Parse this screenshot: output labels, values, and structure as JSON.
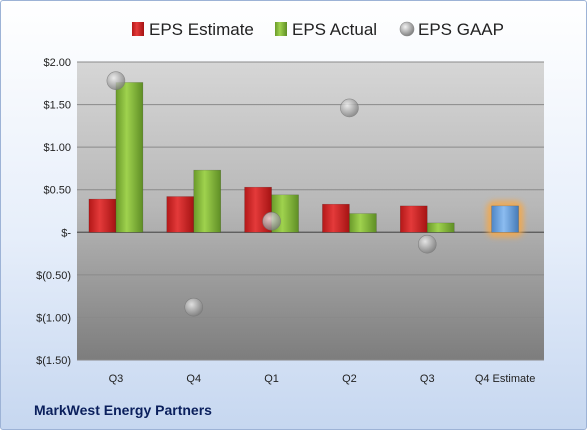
{
  "company": "MarkWest Energy Partners",
  "colors": {
    "estimate": "#d92a2a",
    "actual": "#8cc63e",
    "gaap": "#a8a8a8",
    "forecast": "#6fa8e8",
    "forecast_glow": "#f5a84a"
  },
  "chart_data": {
    "type": "bar",
    "categories": [
      "Q3",
      "Q4",
      "Q1",
      "Q2",
      "Q3",
      "Q4 Estimate"
    ],
    "series": [
      {
        "name": "EPS Estimate",
        "values": [
          0.39,
          0.42,
          0.53,
          0.33,
          0.31,
          0.31
        ]
      },
      {
        "name": "EPS Actual",
        "values": [
          1.76,
          0.73,
          0.44,
          0.22,
          0.11,
          null
        ]
      },
      {
        "name": "EPS GAAP",
        "values": [
          1.78,
          -0.88,
          0.13,
          1.46,
          -0.14,
          null
        ]
      }
    ],
    "ylim": [
      -1.5,
      2.0
    ],
    "yticks": [
      2.0,
      1.5,
      1.0,
      0.5,
      0,
      -0.5,
      -1.0,
      -1.5
    ],
    "ytick_labels": [
      "$2.00",
      "$1.50",
      "$1.00",
      "$0.50",
      "$-",
      "$(0.50)",
      "$(1.00)",
      "$(1.50)"
    ],
    "legend_position": "top",
    "grid": true
  }
}
